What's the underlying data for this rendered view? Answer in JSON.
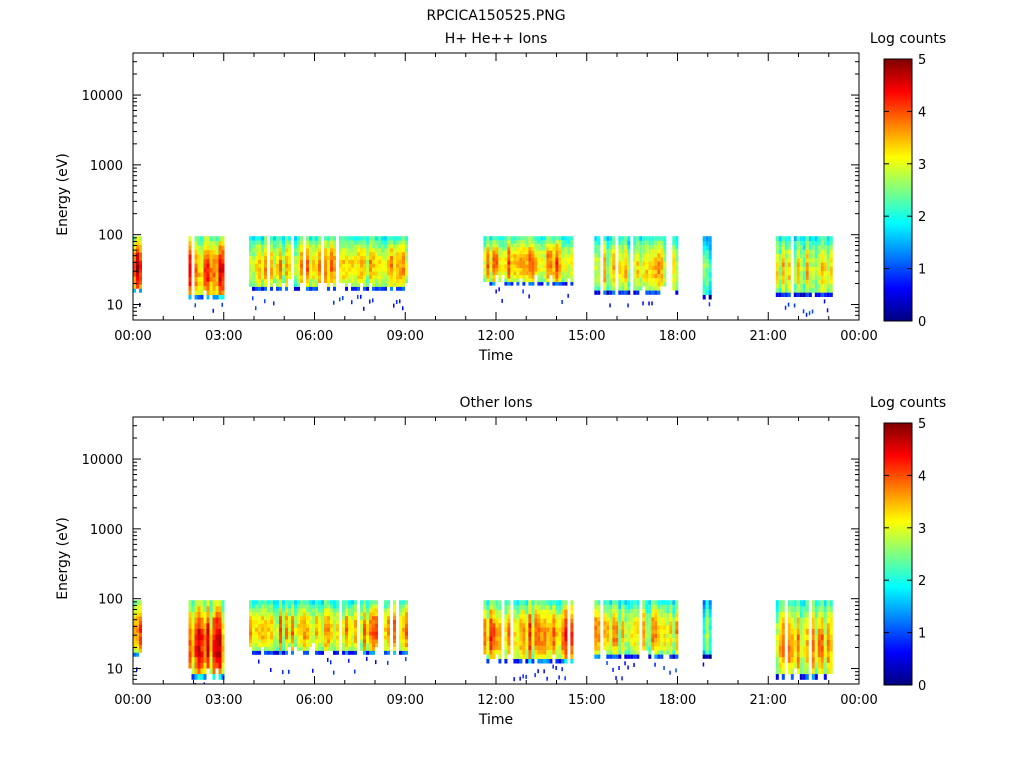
{
  "figure_title": "RPCICA150525.PNG",
  "colorscale": {
    "stops": [
      "#00007f",
      "#0000ff",
      "#007fff",
      "#00ffff",
      "#7fff7f",
      "#ffff00",
      "#ff7f00",
      "#ff0000",
      "#7f0000"
    ]
  },
  "chart_data": [
    {
      "type": "heatmap",
      "title": "H+ He++ Ions",
      "xlabel": "Time",
      "ylabel": "Energy (eV)",
      "xlim": [
        "00:00",
        "24:00"
      ],
      "xticks": [
        "00:00",
        "03:00",
        "06:00",
        "09:00",
        "12:00",
        "15:00",
        "18:00",
        "21:00",
        "00:00"
      ],
      "yscale": "log",
      "ylim": [
        6,
        40000
      ],
      "yticks": [
        "10",
        "100",
        "1000",
        "10000"
      ],
      "colorbar": {
        "label": "Log counts",
        "range": [
          0,
          5
        ],
        "ticks": [
          "0",
          "1",
          "2",
          "3",
          "4",
          "5"
        ]
      },
      "blocks": [
        {
          "start": "00:00",
          "end": "00:15",
          "emin": 15,
          "emax": 95,
          "peak": 4.6
        },
        {
          "start": "01:50",
          "end": "03:00",
          "emin": 12,
          "emax": 95,
          "peak": 4.2
        },
        {
          "start": "03:50",
          "end": "09:00",
          "emin": 16,
          "emax": 95,
          "peak": 3.6
        },
        {
          "start": "11:35",
          "end": "14:30",
          "emin": 19,
          "emax": 95,
          "peak": 3.9
        },
        {
          "start": "15:15",
          "end": "18:00",
          "emin": 14,
          "emax": 95,
          "peak": 3.4
        },
        {
          "start": "18:50",
          "end": "19:05",
          "emin": 12,
          "emax": 95,
          "peak": 2.6
        },
        {
          "start": "21:15",
          "end": "23:05",
          "emin": 13,
          "emax": 95,
          "peak": 3.3
        }
      ]
    },
    {
      "type": "heatmap",
      "title": "Other Ions",
      "xlabel": "Time",
      "ylabel": "Energy (eV)",
      "xlim": [
        "00:00",
        "24:00"
      ],
      "xticks": [
        "00:00",
        "03:00",
        "06:00",
        "09:00",
        "12:00",
        "15:00",
        "18:00",
        "21:00",
        "00:00"
      ],
      "yscale": "log",
      "ylim": [
        6,
        40000
      ],
      "yticks": [
        "10",
        "100",
        "1000",
        "10000"
      ],
      "colorbar": {
        "label": "Log counts",
        "range": [
          0,
          5
        ],
        "ticks": [
          "0",
          "1",
          "2",
          "3",
          "4",
          "5"
        ]
      },
      "blocks": [
        {
          "start": "00:00",
          "end": "00:15",
          "emin": 15,
          "emax": 95,
          "peak": 4.4
        },
        {
          "start": "01:50",
          "end": "03:00",
          "emin": 7,
          "emax": 95,
          "peak": 4.3
        },
        {
          "start": "03:50",
          "end": "09:00",
          "emin": 16,
          "emax": 95,
          "peak": 3.7
        },
        {
          "start": "11:35",
          "end": "14:30",
          "emin": 12,
          "emax": 95,
          "peak": 4.0
        },
        {
          "start": "15:15",
          "end": "18:00",
          "emin": 14,
          "emax": 95,
          "peak": 3.5
        },
        {
          "start": "18:50",
          "end": "19:05",
          "emin": 14,
          "emax": 95,
          "peak": 2.7
        },
        {
          "start": "21:15",
          "end": "23:05",
          "emin": 7,
          "emax": 95,
          "peak": 3.6
        }
      ]
    }
  ]
}
